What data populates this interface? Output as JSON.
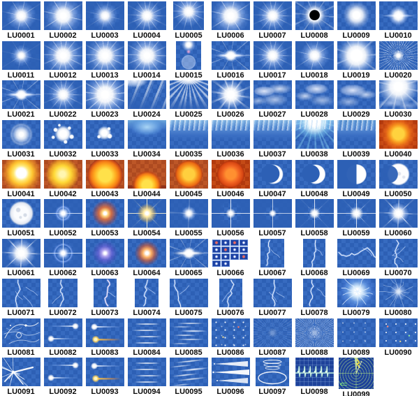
{
  "page": {
    "background": "#ffffff"
  },
  "catalog": {
    "label_prefix": "LU",
    "colors": {
      "thumb_blue": "#2d60b5",
      "thumb_blue_alt": "#376bc0",
      "thumb_orange": "#ad4a20",
      "thumb_orange_alt": "#bd5728",
      "thumb_red": "#b23a0e",
      "label_text": "#0a0a0a",
      "page_background": "#ffffff"
    },
    "items": [
      {
        "id": "LU0001",
        "fx": "starburst"
      },
      {
        "id": "LU0002",
        "fx": "starburst-large"
      },
      {
        "id": "LU0003",
        "fx": "starburst-soft"
      },
      {
        "id": "LU0004",
        "fx": "starburst-rays"
      },
      {
        "id": "LU0005",
        "fx": "sun-rays-top"
      },
      {
        "id": "LU0006",
        "fx": "starburst-large"
      },
      {
        "id": "LU0007",
        "fx": "starburst-rays"
      },
      {
        "id": "LU0008",
        "fx": "solar-eclipse"
      },
      {
        "id": "LU0009",
        "fx": "glow-orb"
      },
      {
        "id": "LU0010",
        "fx": "star-horizontal-flare"
      },
      {
        "id": "LU0011",
        "fx": "starburst-small"
      },
      {
        "id": "LU0012",
        "fx": "radiant-burst"
      },
      {
        "id": "LU0013",
        "fx": "radiant-burst"
      },
      {
        "id": "LU0014",
        "fx": "starburst-wide"
      },
      {
        "id": "LU0015",
        "fx": "lens-flare-vertical"
      },
      {
        "id": "LU0016",
        "fx": "horizontal-flare"
      },
      {
        "id": "LU0017",
        "fx": "starburst-rays"
      },
      {
        "id": "LU0018",
        "fx": "starburst"
      },
      {
        "id": "LU0019",
        "fx": "glow-burst"
      },
      {
        "id": "LU0020",
        "fx": "streak-burst"
      },
      {
        "id": "LU0021",
        "fx": "horizontal-flare-burst"
      },
      {
        "id": "LU0022",
        "fx": "starburst-rays"
      },
      {
        "id": "LU0023",
        "fx": "radiant-burst-large"
      },
      {
        "id": "LU0024",
        "fx": "light-beams"
      },
      {
        "id": "LU0025",
        "fx": "ray-fan"
      },
      {
        "id": "LU0026",
        "fx": "sunbeams"
      },
      {
        "id": "LU0027",
        "fx": "clouds"
      },
      {
        "id": "LU0028",
        "fx": "clouds-wispy"
      },
      {
        "id": "LU0029",
        "fx": "clouds-soft"
      },
      {
        "id": "LU0030",
        "fx": "sun-over-clouds"
      },
      {
        "id": "LU0031",
        "fx": "glow-halo"
      },
      {
        "id": "LU0032",
        "fx": "splatter-burst"
      },
      {
        "id": "LU0033",
        "fx": "splatter-small"
      },
      {
        "id": "LU0034",
        "fx": "underwater-light-dome"
      },
      {
        "id": "LU0035",
        "fx": "water-surface"
      },
      {
        "id": "LU0036",
        "fx": "water-surface"
      },
      {
        "id": "LU0037",
        "fx": "water-surface"
      },
      {
        "id": "LU0038",
        "fx": "underwater-sunburst"
      },
      {
        "id": "LU0039",
        "fx": "water-surface-dark"
      },
      {
        "id": "LU0040",
        "fx": "orange-sun"
      },
      {
        "id": "LU0041",
        "fx": "sun-disc"
      },
      {
        "id": "LU0042",
        "fx": "sun-streaks"
      },
      {
        "id": "LU0043",
        "fx": "setting-sun-large"
      },
      {
        "id": "LU0044",
        "fx": "sunset-half-sun"
      },
      {
        "id": "LU0045",
        "fx": "sun-sphere"
      },
      {
        "id": "LU0046",
        "fx": "sun-sphere-deep"
      },
      {
        "id": "LU0047",
        "fx": "crescent-moon-thin"
      },
      {
        "id": "LU0048",
        "fx": "crescent-moon"
      },
      {
        "id": "LU0049",
        "fx": "half-moon"
      },
      {
        "id": "LU0050",
        "fx": "gibbous-moon"
      },
      {
        "id": "LU0051",
        "fx": "full-moon"
      },
      {
        "id": "LU0052",
        "fx": "star-ring-halo"
      },
      {
        "id": "LU0053",
        "fx": "orange-glow-star"
      },
      {
        "id": "LU0054",
        "fx": "gold-cross-star"
      },
      {
        "id": "LU0055",
        "fx": "white-sparkle"
      },
      {
        "id": "LU0056",
        "fx": "cross-star-thin"
      },
      {
        "id": "LU0057",
        "fx": "cross-star-small"
      },
      {
        "id": "LU0058",
        "fx": "six-point-star-small"
      },
      {
        "id": "LU0059",
        "fx": "six-point-star"
      },
      {
        "id": "LU0060",
        "fx": "multi-ray-star"
      },
      {
        "id": "LU0061",
        "fx": "bright-star-large"
      },
      {
        "id": "LU0062",
        "fx": "star-circle-halo"
      },
      {
        "id": "LU0063",
        "fx": "violet-glow-dot"
      },
      {
        "id": "LU0064",
        "fx": "orange-glow-dot"
      },
      {
        "id": "LU0065",
        "fx": "lens-flare-ellipse"
      },
      {
        "id": "LU0066",
        "fx": "star-tile-grid"
      },
      {
        "id": "LU0067",
        "fx": "lightning-narrow"
      },
      {
        "id": "LU0068",
        "fx": "lightning-narrow"
      },
      {
        "id": "LU0069",
        "fx": "lightning-horizontal"
      },
      {
        "id": "LU0070",
        "fx": "lightning-branched"
      },
      {
        "id": "LU0071",
        "fx": "lightning-branched"
      },
      {
        "id": "LU0072",
        "fx": "lightning-narrow"
      },
      {
        "id": "LU0073",
        "fx": "lightning-narrow-pink"
      },
      {
        "id": "LU0074",
        "fx": "lightning-narrow"
      },
      {
        "id": "LU0075",
        "fx": "lightning-diagonal"
      },
      {
        "id": "LU0076",
        "fx": "lightning-narrow"
      },
      {
        "id": "LU0077",
        "fx": "lightning"
      },
      {
        "id": "LU0078",
        "fx": "lightning-narrow"
      },
      {
        "id": "LU0079",
        "fx": "electric-burst"
      },
      {
        "id": "LU0080",
        "fx": "electric-web"
      },
      {
        "id": "LU0081",
        "fx": "light-painting"
      },
      {
        "id": "LU0082",
        "fx": "comet-streaks"
      },
      {
        "id": "LU0083",
        "fx": "comet-streaks-orange"
      },
      {
        "id": "LU0084",
        "fx": "horizontal-lines"
      },
      {
        "id": "LU0085",
        "fx": "streak-cluster"
      },
      {
        "id": "LU0086",
        "fx": "starfield"
      },
      {
        "id": "LU0087",
        "fx": "radial-streaks-faint"
      },
      {
        "id": "LU0088",
        "fx": "warp-streaks"
      },
      {
        "id": "LU0089",
        "fx": "starfield-sparse"
      },
      {
        "id": "LU0090",
        "fx": "starfield-dots"
      },
      {
        "id": "LU0091",
        "fx": "streak-explosion"
      },
      {
        "id": "LU0092",
        "fx": "comet-streaks"
      },
      {
        "id": "LU0093",
        "fx": "comet-streaks-orange"
      },
      {
        "id": "LU0094",
        "fx": "horizontal-lines"
      },
      {
        "id": "LU0095",
        "fx": "streak-cluster-diagonal"
      },
      {
        "id": "LU0096",
        "fx": "speed-wedges"
      },
      {
        "id": "LU0097",
        "fx": "ellipse-loops"
      },
      {
        "id": "LU0098",
        "fx": "heartbeat-monitor"
      },
      {
        "id": "LU0099",
        "fx": "radar-screen"
      }
    ]
  }
}
